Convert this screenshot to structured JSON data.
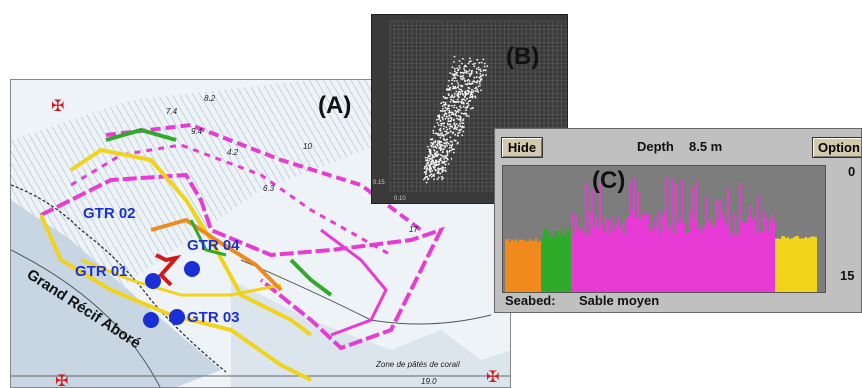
{
  "map": {
    "panel_label": "(A)",
    "stations": [
      "GTR 02",
      "GTR 04",
      "GTR 01",
      "GTR 03"
    ],
    "reef_label": "Grand Récif Aboré",
    "zone_label": "Zone de pâtés de corail",
    "chart_numbers": [
      "8.2",
      "7.4",
      "9.4",
      "4.2",
      "6.3",
      "10",
      "17",
      "19.0"
    ],
    "station_color": "#1a2fd6",
    "track_colors": [
      "#f2d31b",
      "#e83bd6",
      "#2faa2a",
      "#f08a1c",
      "#d01a1a"
    ]
  },
  "scatter": {
    "panel_label": "(B)",
    "axis_labels": [
      "0.15",
      "0.10"
    ]
  },
  "echosounder": {
    "panel_label": "(C)",
    "hide_button": "Hide",
    "depth_label": "Depth",
    "depth_value": "8.5 m",
    "option_button": "Option",
    "scale_top": "0",
    "scale_bottom": "15",
    "seabed_label": "Seabed:",
    "seabed_value": "Sable moyen",
    "segment_colors": [
      "#f08a1c",
      "#2faa2a",
      "#e83bd6",
      "#f2d31b"
    ]
  }
}
